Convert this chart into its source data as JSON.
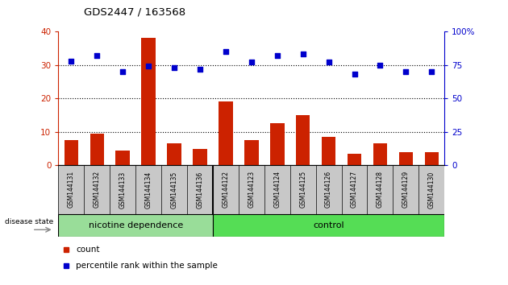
{
  "title": "GDS2447 / 163568",
  "samples": [
    "GSM144131",
    "GSM144132",
    "GSM144133",
    "GSM144134",
    "GSM144135",
    "GSM144136",
    "GSM144122",
    "GSM144123",
    "GSM144124",
    "GSM144125",
    "GSM144126",
    "GSM144127",
    "GSM144128",
    "GSM144129",
    "GSM144130"
  ],
  "counts": [
    7.5,
    9.5,
    4.5,
    38,
    6.5,
    5,
    19,
    7.5,
    12.5,
    15,
    8.5,
    3.5,
    6.5,
    4,
    4
  ],
  "percentile_ranks": [
    77.5,
    82,
    70,
    74,
    73,
    72,
    85,
    77,
    82,
    83,
    77,
    68,
    75,
    70,
    70
  ],
  "bar_color": "#cc2200",
  "dot_color": "#0000cc",
  "xticklabel_bg": "#c8c8c8",
  "group1_label": "nicotine dependence",
  "group2_label": "control",
  "group1_color": "#99dd99",
  "group2_color": "#55dd55",
  "group1_count": 6,
  "group2_count": 9,
  "ylim_left": [
    0,
    40
  ],
  "ylim_right": [
    0,
    100
  ],
  "yticks_left": [
    0,
    10,
    20,
    30,
    40
  ],
  "yticks_right": [
    0,
    25,
    50,
    75,
    100
  ],
  "legend_count_label": "count",
  "legend_pct_label": "percentile rank within the sample",
  "disease_state_label": "disease state"
}
